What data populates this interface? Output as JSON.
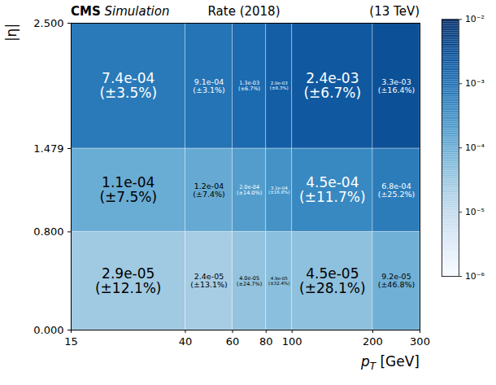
{
  "chart_data": {
    "type": "heatmap",
    "title": "Rate (2018)",
    "experiment_label": "CMS",
    "status_label": "Simulation",
    "energy_label": "(13 TeV)",
    "x_label": "pT [GeV]",
    "y_label": "|η|",
    "log": "x",
    "data_labels": true,
    "x_bins": [
      15,
      40,
      60,
      80,
      100,
      200,
      300
    ],
    "y_bins": [
      0,
      0.8,
      1.479,
      2.5
    ],
    "xlim": [
      15,
      300
    ],
    "xticks": [
      15,
      40,
      60,
      80,
      100,
      200,
      300
    ],
    "ylim": [
      0,
      2.5
    ],
    "yticks": [
      {
        "value": 0,
        "label": "0.000"
      },
      {
        "value": 0.8,
        "label": "0.800"
      },
      {
        "value": 1.479,
        "label": "1.479"
      },
      {
        "value": 2.5,
        "label": "2.500"
      }
    ],
    "values": [
      [
        2.9e-05,
        2.4e-05,
        4e-05,
        4.9e-05,
        4.5e-05,
        9.2e-05
      ],
      [
        0.00011,
        0.00012,
        0.0002,
        0.00031,
        0.00045,
        0.00068
      ],
      [
        0.00074,
        0.00091,
        0.0013,
        0.002,
        0.0024,
        0.0033
      ]
    ],
    "value_labels": [
      [
        "2.9e-05",
        "2.4e-05",
        "4.0e-05",
        "4.9e-05",
        "4.5e-05",
        "9.2e-05"
      ],
      [
        "1.1e-04",
        "1.2e-04",
        "2.0e-04",
        "3.1e-04",
        "4.5e-04",
        "6.8e-04"
      ],
      [
        "7.4e-04",
        "9.1e-04",
        "1.3e-03",
        "2.0e-03",
        "2.4e-03",
        "3.3e-03"
      ]
    ],
    "errors": [
      [
        12.1,
        13.1,
        24.7,
        32.4,
        28.1,
        46.8
      ],
      [
        7.5,
        7.4,
        14.0,
        16.8,
        11.7,
        25.2
      ],
      [
        3.5,
        3.1,
        6.7,
        8.3,
        6.7,
        16.4
      ]
    ],
    "error_labels": [
      [
        "(±12.1%)",
        "(±13.1%)",
        "(±24.7%)",
        "(±32.4%)",
        "(±28.1%)",
        "(±46.8%)"
      ],
      [
        "(±7.5%)",
        "(±7.4%)",
        "(±14.0%)",
        "(±16.8%)",
        "(±11.7%)",
        "(±25.2%)"
      ],
      [
        "(±3.5%)",
        "(±3.1%)",
        "(±6.7%)",
        "(±8.3%)",
        "(±6.7%)",
        "(±16.4%)"
      ]
    ],
    "color": "blues",
    "colorbar": {
      "log": true,
      "lim": [
        1e-06,
        0.01
      ],
      "ticks": [
        {
          "value": 1e-06,
          "label": "10⁻⁶"
        },
        {
          "value": 1e-05,
          "label": "10⁻⁵"
        },
        {
          "value": 0.0001,
          "label": "10⁻⁴"
        },
        {
          "value": 0.001,
          "label": "10⁻³"
        },
        {
          "value": 0.01,
          "label": "10⁻²"
        }
      ]
    }
  }
}
